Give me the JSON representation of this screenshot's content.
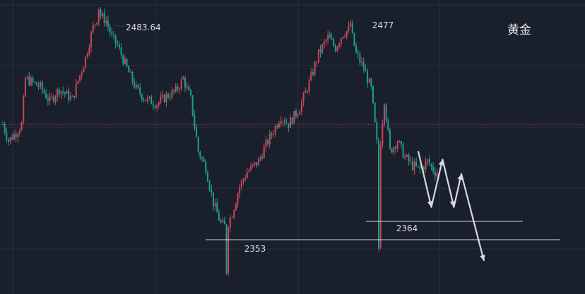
{
  "title": "黄金",
  "colors": {
    "background": "#1a1f2c",
    "grid": "#253040",
    "up": "#c8485c",
    "down": "#1f9e8c",
    "reference": "#c8485c",
    "support": "#d6d9df",
    "arrow": "#d6d9df"
  },
  "chart_data": {
    "type": "candlestick",
    "title": "黄金",
    "ylim": [
      2346,
      2488
    ],
    "grid": true,
    "reference_level": 2428,
    "annotations": [
      {
        "text": "2483.64",
        "value": 2483.64
      },
      {
        "text": "2477",
        "value": 2477
      },
      {
        "text": "2364",
        "value": 2364
      },
      {
        "text": "2353",
        "value": 2353
      }
    ],
    "support_lines": [
      {
        "label": "2364",
        "value": 2364
      },
      {
        "label": "2353",
        "value": 2353
      }
    ],
    "price_path": [
      {
        "i": 0,
        "p": 2428
      },
      {
        "i": 3,
        "p": 2420
      },
      {
        "i": 7,
        "p": 2424
      },
      {
        "i": 10,
        "p": 2428
      },
      {
        "i": 12,
        "p": 2450
      },
      {
        "i": 20,
        "p": 2446
      },
      {
        "i": 25,
        "p": 2439
      },
      {
        "i": 30,
        "p": 2445
      },
      {
        "i": 37,
        "p": 2440
      },
      {
        "i": 40,
        "p": 2449
      },
      {
        "i": 44,
        "p": 2460
      },
      {
        "i": 48,
        "p": 2475
      },
      {
        "i": 51,
        "p": 2481
      },
      {
        "i": 55,
        "p": 2478
      },
      {
        "i": 58,
        "p": 2470
      },
      {
        "i": 61,
        "p": 2466
      },
      {
        "i": 66,
        "p": 2455
      },
      {
        "i": 71,
        "p": 2445
      },
      {
        "i": 76,
        "p": 2440
      },
      {
        "i": 82,
        "p": 2438
      },
      {
        "i": 88,
        "p": 2442
      },
      {
        "i": 92,
        "p": 2444
      },
      {
        "i": 96,
        "p": 2450
      },
      {
        "i": 100,
        "p": 2440
      },
      {
        "i": 104,
        "p": 2415
      },
      {
        "i": 108,
        "p": 2407
      },
      {
        "i": 112,
        "p": 2390
      },
      {
        "i": 116,
        "p": 2380
      },
      {
        "i": 119,
        "p": 2378
      },
      {
        "i": 122,
        "p": 2385
      },
      {
        "i": 126,
        "p": 2398
      },
      {
        "i": 130,
        "p": 2405
      },
      {
        "i": 136,
        "p": 2410
      },
      {
        "i": 140,
        "p": 2418
      },
      {
        "i": 144,
        "p": 2425
      },
      {
        "i": 148,
        "p": 2432
      },
      {
        "i": 152,
        "p": 2428
      },
      {
        "i": 158,
        "p": 2436
      },
      {
        "i": 163,
        "p": 2448
      },
      {
        "i": 168,
        "p": 2462
      },
      {
        "i": 173,
        "p": 2470
      },
      {
        "i": 177,
        "p": 2465
      },
      {
        "i": 181,
        "p": 2472
      },
      {
        "i": 185,
        "p": 2474
      },
      {
        "i": 188,
        "p": 2462
      },
      {
        "i": 192,
        "p": 2455
      },
      {
        "i": 196,
        "p": 2445
      },
      {
        "i": 200,
        "p": 2410
      },
      {
        "i": 203,
        "p": 2440
      },
      {
        "i": 206,
        "p": 2415
      },
      {
        "i": 210,
        "p": 2420
      },
      {
        "i": 214,
        "p": 2412
      },
      {
        "i": 218,
        "p": 2408
      },
      {
        "i": 222,
        "p": 2406
      },
      {
        "i": 226,
        "p": 2410
      },
      {
        "i": 230,
        "p": 2405
      }
    ],
    "forecast_path": [
      {
        "i": 221,
        "p": 2415
      },
      {
        "i": 228,
        "p": 2388
      },
      {
        "i": 234,
        "p": 2411
      },
      {
        "i": 240,
        "p": 2388
      },
      {
        "i": 244,
        "p": 2404
      },
      {
        "i": 256,
        "p": 2362
      }
    ]
  }
}
